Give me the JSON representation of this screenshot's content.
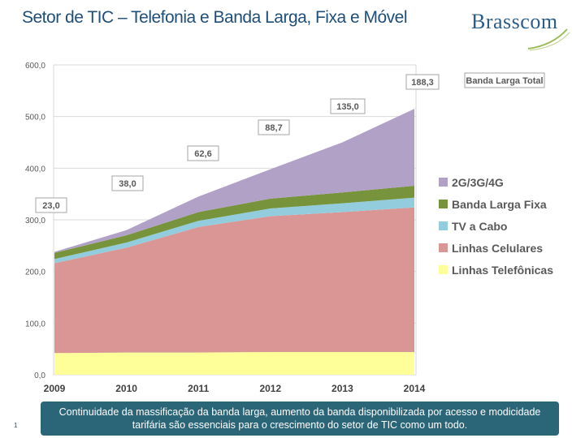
{
  "title": "Setor de TIC – Telefonia e Banda Larga, Fixa e Móvel",
  "logo": {
    "text": "Brasscom"
  },
  "caption": "Continuidade da massificação da banda larga, aumento da banda disponibilizada por acesso e modicidade tarifária são essenciais para o crescimento do setor de TIC como um todo.",
  "slide_number": "1",
  "chart_data": {
    "type": "area",
    "stacked": true,
    "categories": [
      "2009",
      "2010",
      "2011",
      "2012",
      "2013",
      "2014"
    ],
    "ylim": [
      0,
      600
    ],
    "yticks": [
      "0,0",
      "100,0",
      "200,0",
      "300,0",
      "400,0",
      "500,0",
      "600,0"
    ],
    "grid": true,
    "legend_position": "right",
    "series": [
      {
        "name": "Linhas Telefônicas",
        "color": "#ffff99",
        "values": [
          42,
          43,
          43,
          44,
          44,
          44
        ]
      },
      {
        "name": "Linhas Celulares",
        "color": "#d99694",
        "values": [
          174,
          203,
          243,
          263,
          271,
          280
        ]
      },
      {
        "name": "TV a Cabo",
        "color": "#93cddd",
        "values": [
          8,
          10,
          12,
          15,
          17,
          19
        ]
      },
      {
        "name": "Banda Larga Fixa",
        "color": "#77933c",
        "values": [
          12,
          14,
          17,
          19,
          21,
          23
        ]
      },
      {
        "name": "2G/3G/4G",
        "color": "#b2a1c7",
        "values": [
          2,
          10,
          30,
          57,
          97,
          149
        ]
      }
    ],
    "annotations": [
      {
        "category": "2009",
        "label": "23,0",
        "value": 23.0
      },
      {
        "category": "2010",
        "label": "38,0",
        "value": 38.0
      },
      {
        "category": "2011",
        "label": "62,6",
        "value": 62.6
      },
      {
        "category": "2012",
        "label": "88,7",
        "value": 88.7
      },
      {
        "category": "2013",
        "label": "135,0",
        "value": 135.0
      },
      {
        "category": "2014",
        "label": "188,3",
        "value": 188.3
      }
    ],
    "total_label": "Banda Larga Total"
  }
}
